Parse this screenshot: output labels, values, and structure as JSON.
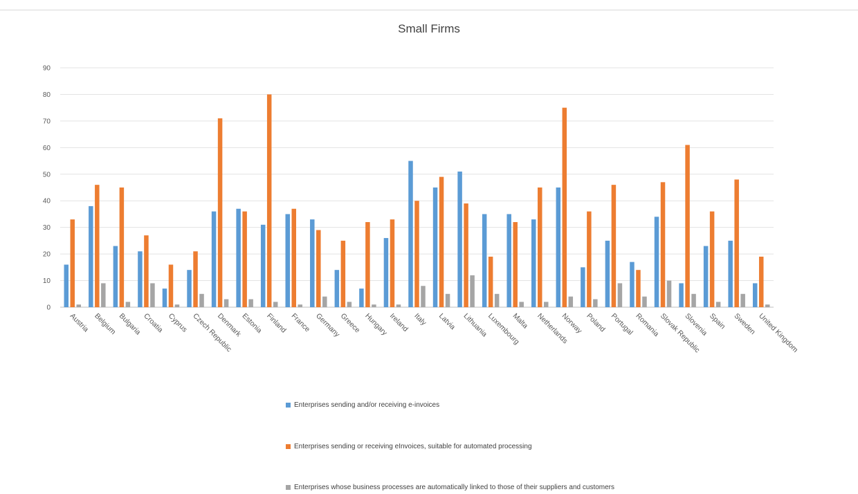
{
  "chart_data": {
    "type": "bar",
    "title": "Small Firms",
    "xlabel": "",
    "ylabel": "",
    "ylim": [
      0,
      90
    ],
    "yticks": [
      0,
      10,
      20,
      30,
      40,
      50,
      60,
      70,
      80,
      90
    ],
    "grid": true,
    "legend_position": "bottom",
    "categories": [
      "Austria",
      "Belgium",
      "Bulgaria",
      "Croatia",
      "Cyprus",
      "Czech Republic",
      "Denmark",
      "Estonia",
      "Finland",
      "France",
      "Germany",
      "Greece",
      "Hungary",
      "Ireland",
      "Italy",
      "Latvia",
      "Lithuania",
      "Luxembourg",
      "Malta",
      "Netherlands",
      "Norway",
      "Poland",
      "Portugal",
      "Romania",
      "Slovak Republic",
      "Slovenia",
      "Spain",
      "Sweden",
      "United Kingdom"
    ],
    "series": [
      {
        "name": "Enterprises sending and/or receiving e-invoices",
        "color": "#5b9bd5",
        "values": [
          16,
          38,
          23,
          21,
          7,
          14,
          36,
          37,
          31,
          35,
          33,
          14,
          7,
          26,
          55,
          45,
          51,
          35,
          35,
          33,
          45,
          15,
          25,
          17,
          34,
          9,
          23,
          25,
          9
        ]
      },
      {
        "name": "Enterprises sending or receiving eInvoices, suitable for automated processing",
        "color": "#ed7d31",
        "values": [
          33,
          46,
          45,
          27,
          16,
          21,
          71,
          36,
          80,
          37,
          29,
          25,
          32,
          33,
          40,
          49,
          39,
          19,
          32,
          45,
          75,
          36,
          46,
          14,
          47,
          61,
          36,
          48,
          19
        ]
      },
      {
        "name": "Enterprises whose business processes are automatically linked to those of their suppliers and customers",
        "color": "#a5a5a5",
        "values": [
          1,
          9,
          2,
          9,
          1,
          5,
          3,
          3,
          2,
          1,
          4,
          2,
          1,
          1,
          8,
          5,
          12,
          5,
          2,
          2,
          4,
          3,
          9,
          4,
          10,
          5,
          2,
          5,
          1
        ]
      }
    ]
  }
}
